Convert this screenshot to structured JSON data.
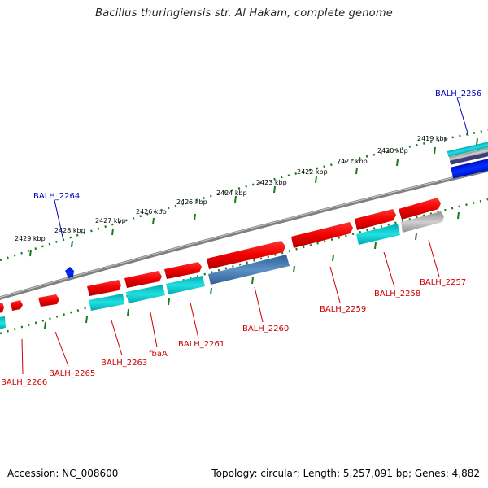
{
  "title": "Bacillus thuringiensis str. Al Hakam, complete genome",
  "footer": {
    "accession": "Accession: NC_008600",
    "summary": "Topology: circular; Length: 5,257,091 bp; Genes: 4,882"
  },
  "colors": {
    "backbone": "#808080",
    "tick": "#1a7a1a",
    "forward_gene": "#ee0000",
    "cds_cyan": "#00c8cc",
    "cds_steel": "#4a7fb5",
    "gray_feature": "#aaaaaa",
    "blue_feature": "#0022ee",
    "forward_label": "#cc0000",
    "reverse_label": "#0000bb"
  },
  "kbp_labels": [
    "2419 kbp",
    "2420 kbp",
    "2421 kbp",
    "2422 kbp",
    "2423 kbp",
    "2424 kbp",
    "2425 kbp",
    "2426 kbp",
    "2427 kbp",
    "2428 kbp",
    "2429 kbp"
  ],
  "genes": [
    {
      "name": "BALH_2256",
      "strand": "reverse"
    },
    {
      "name": "BALH_2257",
      "strand": "forward"
    },
    {
      "name": "BALH_2258",
      "strand": "forward"
    },
    {
      "name": "BALH_2259",
      "strand": "forward"
    },
    {
      "name": "BALH_2260",
      "strand": "forward"
    },
    {
      "name": "BALH_2261",
      "strand": "forward"
    },
    {
      "name": "fbaA",
      "strand": "forward"
    },
    {
      "name": "BALH_2263",
      "strand": "forward"
    },
    {
      "name": "BALH_2264",
      "strand": "reverse"
    },
    {
      "name": "BALH_2265",
      "strand": "forward"
    },
    {
      "name": "BALH_2266",
      "strand": "forward"
    }
  ]
}
